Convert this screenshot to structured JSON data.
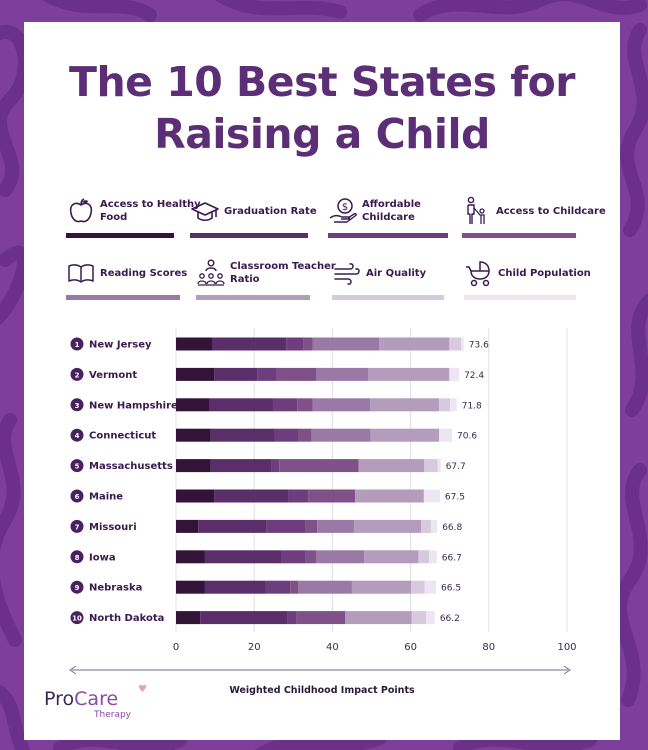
{
  "title_line1": "The 10 Best States for",
  "title_line2": "Raising a Child",
  "legend": [
    {
      "label": "Access to Healthy Food",
      "icon": "apple-icon",
      "color": "#331338"
    },
    {
      "label": "Graduation Rate",
      "icon": "graduation-cap-icon",
      "color": "#5a2e68"
    },
    {
      "label": "Affordable Childcare",
      "icon": "dollar-hand-icon",
      "color": "#6e3d7d"
    },
    {
      "label": "Access to Childcare",
      "icon": "parent-child-icon",
      "color": "#805088"
    },
    {
      "label": "Reading Scores",
      "icon": "book-icon",
      "color": "#9b79a6"
    },
    {
      "label": "Classroom Teacher Ratio",
      "icon": "classroom-icon",
      "color": "#b49cbc"
    },
    {
      "label": "Air Quality",
      "icon": "wind-icon",
      "color": "#d7c9de"
    },
    {
      "label": "Child Population",
      "icon": "stroller-icon",
      "color": "#eee5f2"
    }
  ],
  "chart_data": {
    "type": "bar",
    "orientation": "horizontal",
    "stacked": true,
    "xlabel": "Weighted Childhood Impact Points",
    "xlim": [
      0,
      100
    ],
    "xticks": [
      0,
      20,
      40,
      60,
      80,
      100
    ],
    "grid": true,
    "categories": [
      "New Jersey",
      "Vermont",
      "New Hampshire",
      "Connecticut",
      "Massachusetts",
      "Maine",
      "Missouri",
      "Iowa",
      "Nebraska",
      "North Dakota"
    ],
    "ranks": [
      "1",
      "2",
      "3",
      "4",
      "5",
      "6",
      "7",
      "8",
      "9",
      "10"
    ],
    "totals": [
      "73.6",
      "72.4",
      "71.8",
      "70.6",
      "67.7",
      "67.5",
      "66.8",
      "66.7",
      "66.5",
      "66.2"
    ],
    "series": [
      {
        "name": "Access to Healthy Food",
        "values": [
          9.2,
          9.8,
          8.6,
          8.9,
          8.9,
          9.8,
          5.7,
          7.4,
          7.4,
          6.2
        ]
      },
      {
        "name": "Graduation Rate",
        "values": [
          19.0,
          11.0,
          16.2,
          16.3,
          15.5,
          19.0,
          17.5,
          19.6,
          15.5,
          22.4
        ]
      },
      {
        "name": "Affordable Childcare",
        "values": [
          4.3,
          5.0,
          6.2,
          6.0,
          2.0,
          5.0,
          9.8,
          6.1,
          6.3,
          2.1
        ]
      },
      {
        "name": "Access to Childcare",
        "values": [
          2.5,
          10.1,
          3.9,
          3.5,
          20.3,
          12.0,
          3.1,
          2.7,
          2.1,
          12.6
        ]
      },
      {
        "name": "Reading Scores",
        "values": [
          17.0,
          13.3,
          14.8,
          15.1,
          0,
          0,
          9.5,
          12.3,
          13.7,
          0
        ]
      },
      {
        "name": "Classroom Teacher Ratio",
        "values": [
          17.9,
          20.7,
          17.6,
          17.5,
          16.8,
          17.6,
          17.1,
          13.9,
          15.1,
          17.0
        ]
      },
      {
        "name": "Air Quality",
        "values": [
          3.0,
          0,
          2.8,
          0,
          3.4,
          0,
          2.5,
          2.7,
          3.5,
          3.7
        ]
      },
      {
        "name": "Child Population",
        "values": [
          0.7,
          2.5,
          1.7,
          3.3,
          0.8,
          4.1,
          1.6,
          2.0,
          2.9,
          2.2
        ]
      }
    ]
  },
  "logo": {
    "pro": "Pro",
    "care": "Care",
    "sub": "Therapy"
  }
}
